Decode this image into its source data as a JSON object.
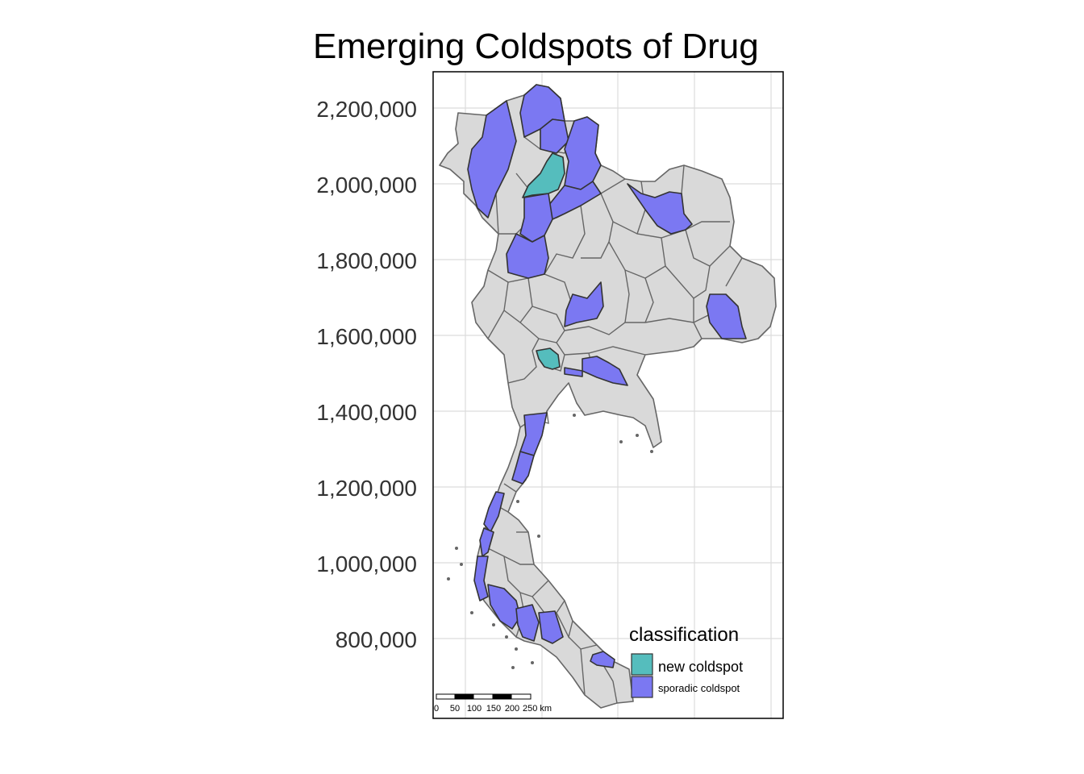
{
  "title": "Emerging Coldspots of Drug",
  "y_axis": {
    "tick_labels": [
      "2,200,000",
      "2,000,000",
      "1,800,000",
      "1,600,000",
      "1,400,000",
      "1,200,000",
      "1,000,000",
      "800,000"
    ]
  },
  "legend": {
    "title": "classification",
    "items": [
      {
        "label": "new coldspot",
        "color": "#55BDBD"
      },
      {
        "label": "sporadic coldspot",
        "color": "#7B78F2"
      }
    ]
  },
  "scale_bar": {
    "labels": [
      "0",
      "50",
      "100",
      "150",
      "200",
      "250 km"
    ]
  },
  "colors": {
    "background_region": "#D9D9D9",
    "region_border": "#666666",
    "new_coldspot": "#55BDBD",
    "sporadic_coldspot": "#7B78F2"
  }
}
